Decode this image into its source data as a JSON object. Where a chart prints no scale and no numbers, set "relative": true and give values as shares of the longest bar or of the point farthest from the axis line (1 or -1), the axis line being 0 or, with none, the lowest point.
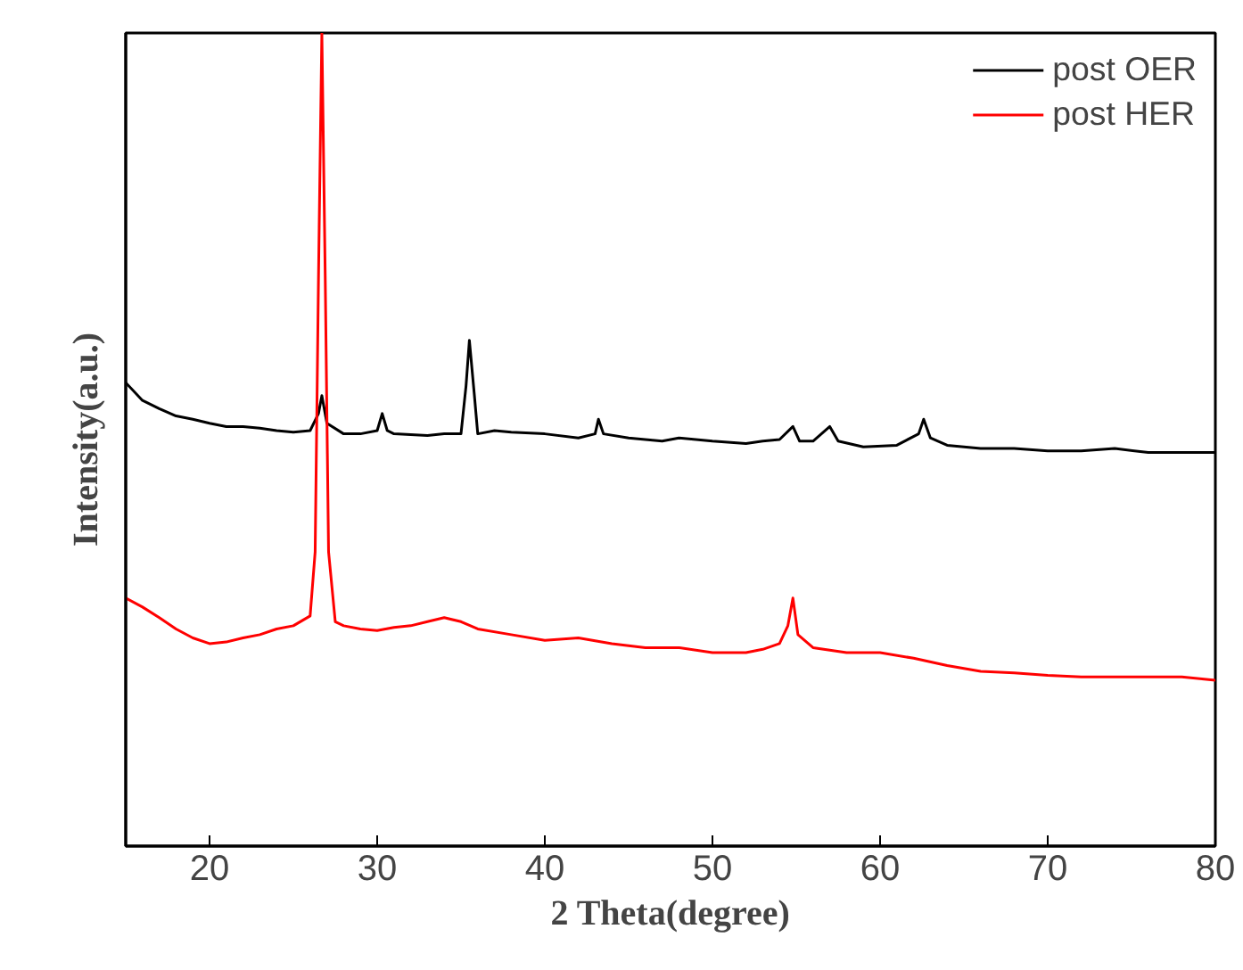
{
  "chart_data": {
    "type": "line",
    "relative": true,
    "xlabel": "2 Theta(degree)",
    "ylabel": "Intensity(a.u.)",
    "xlim": [
      15,
      80
    ],
    "xticks": [
      20,
      30,
      40,
      50,
      60,
      70,
      80
    ],
    "legend": "top right",
    "grid": false,
    "series": [
      {
        "name": "post OER",
        "color": "#000000",
        "x": [
          15,
          16,
          17,
          18,
          19,
          20,
          21,
          22,
          23,
          24,
          25,
          26,
          26.5,
          26.7,
          27,
          28,
          29,
          30,
          30.3,
          30.6,
          31,
          33,
          34,
          35,
          35.3,
          35.5,
          35.8,
          36,
          37,
          38,
          40,
          42,
          43,
          43.2,
          43.5,
          45,
          47,
          48,
          50,
          52,
          53,
          54,
          54.8,
          55.2,
          56,
          57,
          57.5,
          59,
          61,
          62.3,
          62.6,
          63,
          64,
          66,
          68,
          70,
          72,
          74,
          76,
          78,
          80
        ],
        "values": [
          0.57,
          0.548,
          0.538,
          0.529,
          0.525,
          0.52,
          0.516,
          0.516,
          0.514,
          0.511,
          0.509,
          0.511,
          0.532,
          0.554,
          0.52,
          0.507,
          0.507,
          0.511,
          0.532,
          0.511,
          0.507,
          0.505,
          0.507,
          0.507,
          0.566,
          0.622,
          0.554,
          0.507,
          0.511,
          0.509,
          0.507,
          0.502,
          0.507,
          0.525,
          0.507,
          0.502,
          0.498,
          0.502,
          0.498,
          0.495,
          0.498,
          0.5,
          0.516,
          0.498,
          0.498,
          0.516,
          0.498,
          0.491,
          0.493,
          0.507,
          0.525,
          0.502,
          0.493,
          0.489,
          0.489,
          0.486,
          0.486,
          0.489,
          0.484,
          0.484,
          0.484
        ]
      },
      {
        "name": "post HER",
        "color": "#ff0000",
        "x": [
          15,
          16,
          17,
          18,
          19,
          20,
          21,
          22,
          23,
          24,
          25,
          26,
          26.3,
          26.5,
          26.7,
          26.9,
          27.1,
          27.5,
          28,
          29,
          30,
          31,
          32,
          33,
          34,
          35,
          36,
          38,
          40,
          42,
          44,
          46,
          48,
          50,
          52,
          53,
          54,
          54.5,
          54.8,
          55.1,
          56,
          58,
          60,
          62,
          64,
          66,
          68,
          70,
          72,
          75,
          78,
          80
        ],
        "values": [
          0.305,
          0.294,
          0.281,
          0.267,
          0.256,
          0.249,
          0.251,
          0.256,
          0.26,
          0.267,
          0.271,
          0.283,
          0.362,
          0.701,
          1,
          0.701,
          0.362,
          0.276,
          0.271,
          0.267,
          0.265,
          0.269,
          0.271,
          0.276,
          0.281,
          0.276,
          0.267,
          0.26,
          0.253,
          0.256,
          0.249,
          0.244,
          0.244,
          0.238,
          0.238,
          0.242,
          0.249,
          0.271,
          0.305,
          0.26,
          0.244,
          0.238,
          0.238,
          0.231,
          0.222,
          0.215,
          0.213,
          0.21,
          0.208,
          0.208,
          0.208,
          0.204
        ]
      }
    ]
  }
}
